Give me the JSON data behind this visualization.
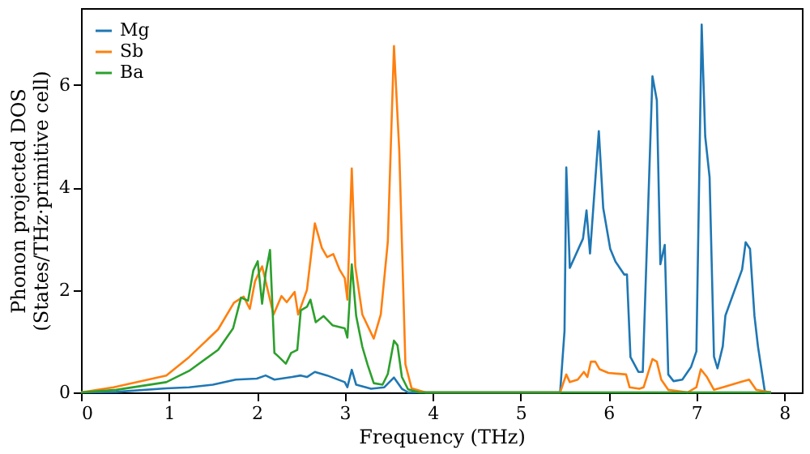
{
  "chart_data": {
    "type": "line",
    "xlabel": "Frequency (THz)",
    "ylabel": "Phonon projected DOS\n(States/THz·primitive cell)",
    "xlim": [
      0,
      8.2
    ],
    "ylim": [
      0,
      7.5
    ],
    "xticks": [
      0,
      1,
      2,
      3,
      4,
      5,
      6,
      7,
      8
    ],
    "yticks": [
      0,
      2,
      4,
      6
    ],
    "grid": false,
    "legend": "top left",
    "line_style": "solid",
    "marker": "none",
    "series": [
      {
        "name": "Mg",
        "color": "#1f77b4",
        "x": [
          0,
          0.4,
          0.97,
          1.23,
          1.5,
          1.76,
          2.0,
          2.1,
          2.2,
          2.4,
          2.5,
          2.57,
          2.66,
          2.8,
          3.0,
          3.03,
          3.08,
          3.13,
          3.3,
          3.45,
          3.56,
          3.65,
          3.72,
          5.45,
          5.5,
          5.52,
          5.56,
          5.71,
          5.75,
          5.79,
          5.89,
          5.94,
          6.02,
          6.08,
          6.18,
          6.21,
          6.25,
          6.34,
          6.39,
          6.5,
          6.55,
          6.59,
          6.64,
          6.68,
          6.74,
          6.84,
          6.94,
          7.0,
          7.06,
          7.1,
          7.15,
          7.2,
          7.24,
          7.3,
          7.33,
          7.52,
          7.56,
          7.61,
          7.66,
          7.7,
          7.78,
          7.85
        ],
        "values": [
          0,
          0.01,
          0.08,
          0.1,
          0.15,
          0.25,
          0.27,
          0.33,
          0.25,
          0.3,
          0.33,
          0.3,
          0.4,
          0.33,
          0.2,
          0.1,
          0.44,
          0.15,
          0.07,
          0.1,
          0.29,
          0.07,
          0,
          0,
          1.2,
          4.39,
          2.43,
          3.0,
          3.55,
          2.71,
          5.1,
          3.6,
          2.8,
          2.55,
          2.3,
          2.3,
          0.69,
          0.4,
          0.4,
          6.17,
          5.7,
          2.5,
          2.88,
          0.35,
          0.22,
          0.25,
          0.5,
          0.8,
          7.18,
          5.0,
          4.2,
          0.7,
          0.47,
          0.9,
          1.5,
          2.4,
          2.93,
          2.8,
          1.5,
          0.9,
          0,
          0
        ]
      },
      {
        "name": "Sb",
        "color": "#ff7f0e",
        "x": [
          0,
          0.37,
          0.97,
          1.23,
          1.56,
          1.74,
          1.85,
          1.92,
          1.98,
          2.06,
          2.11,
          2.19,
          2.28,
          2.34,
          2.43,
          2.47,
          2.57,
          2.66,
          2.74,
          2.8,
          2.87,
          2.94,
          3.0,
          3.03,
          3.08,
          3.12,
          3.2,
          3.33,
          3.41,
          3.49,
          3.56,
          3.62,
          3.69,
          3.76,
          3.92,
          5.45,
          5.52,
          5.56,
          5.65,
          5.72,
          5.76,
          5.8,
          5.85,
          5.9,
          6.0,
          6.2,
          6.24,
          6.35,
          6.4,
          6.5,
          6.55,
          6.6,
          6.68,
          6.9,
          7.0,
          7.05,
          7.12,
          7.2,
          7.3,
          7.5,
          7.6,
          7.68,
          7.85
        ],
        "values": [
          0,
          0.1,
          0.33,
          0.69,
          1.23,
          1.75,
          1.87,
          1.63,
          2.17,
          2.46,
          2.1,
          1.52,
          1.88,
          1.76,
          1.96,
          1.52,
          2.0,
          3.3,
          2.82,
          2.64,
          2.7,
          2.4,
          2.23,
          1.81,
          4.37,
          2.46,
          1.52,
          1.05,
          1.52,
          2.94,
          6.76,
          4.73,
          0.55,
          0.08,
          0,
          0,
          0.35,
          0.2,
          0.25,
          0.4,
          0.3,
          0.6,
          0.6,
          0.45,
          0.38,
          0.35,
          0.1,
          0.07,
          0.1,
          0.65,
          0.6,
          0.25,
          0.05,
          0,
          0.1,
          0.45,
          0.3,
          0.05,
          0.1,
          0.2,
          0.25,
          0.05,
          0
        ]
      },
      {
        "name": "Ba",
        "color": "#2ca02c",
        "x": [
          0,
          0.4,
          0.97,
          1.23,
          1.56,
          1.73,
          1.82,
          1.9,
          1.96,
          2.01,
          2.06,
          2.1,
          2.15,
          2.2,
          2.24,
          2.33,
          2.39,
          2.46,
          2.5,
          2.57,
          2.61,
          2.67,
          2.76,
          2.86,
          3.0,
          3.03,
          3.08,
          3.13,
          3.2,
          3.26,
          3.33,
          3.43,
          3.49,
          3.56,
          3.6,
          3.65,
          3.72,
          3.85,
          7.85
        ],
        "values": [
          0,
          0.05,
          0.2,
          0.42,
          0.83,
          1.25,
          1.85,
          1.79,
          2.38,
          2.56,
          1.73,
          2.32,
          2.78,
          0.77,
          0.71,
          0.56,
          0.77,
          0.83,
          1.6,
          1.67,
          1.81,
          1.37,
          1.49,
          1.31,
          1.25,
          1.07,
          2.5,
          1.49,
          0.89,
          0.54,
          0.18,
          0.15,
          0.36,
          1.01,
          0.92,
          0.3,
          0.06,
          0,
          0
        ]
      }
    ]
  }
}
